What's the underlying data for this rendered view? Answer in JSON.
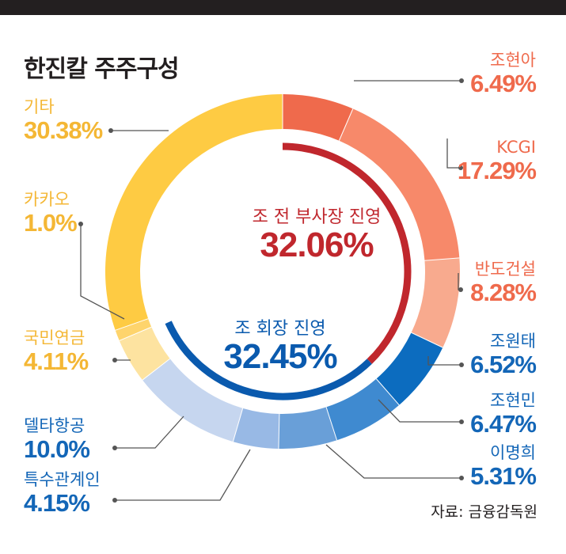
{
  "title": "한진칼 주주구성",
  "source": "자료: 금융감독원",
  "colors": {
    "orange_text": "#ef6a4c",
    "yellow_text": "#f4b735",
    "blue_text": "#1366b7",
    "red_group": "#c0272d",
    "blue_group": "#0a5aae",
    "leader": "#555555"
  },
  "chart_data": {
    "type": "pie",
    "style": "donut",
    "slices": [
      {
        "label": "조현아",
        "value": 6.49,
        "value_label": "6.49%",
        "color": "#ef6a4c"
      },
      {
        "label": "KCGI",
        "value": 17.29,
        "value_label": "17.29%",
        "color": "#f7896a"
      },
      {
        "label": "반도건설",
        "value": 8.28,
        "value_label": "8.28%",
        "color": "#f8aa8e"
      },
      {
        "label": "조원태",
        "value": 6.52,
        "value_label": "6.52%",
        "color": "#0c6cbf"
      },
      {
        "label": "조현민",
        "value": 6.47,
        "value_label": "6.47%",
        "color": "#3f8ad0"
      },
      {
        "label": "이명희",
        "value": 5.31,
        "value_label": "5.31%",
        "color": "#699fd8"
      },
      {
        "label": "특수관계인",
        "value": 4.15,
        "value_label": "4.15%",
        "color": "#98b9e5"
      },
      {
        "label": "델타항공",
        "value": 10.0,
        "value_label": "10.0%",
        "color": "#c6d6ef"
      },
      {
        "label": "국민연금",
        "value": 4.11,
        "value_label": "4.11%",
        "color": "#fde3a0"
      },
      {
        "label": "카카오",
        "value": 1.0,
        "value_label": "1.0%",
        "color": "#fed46c"
      },
      {
        "label": "기타",
        "value": 30.38,
        "value_label": "30.38%",
        "color": "#fecb43"
      }
    ],
    "groups": [
      {
        "label": "조 전 부사장 진영",
        "value": 32.06,
        "value_label": "32.06%",
        "color": "#c0272d"
      },
      {
        "label": "조 회장 진영",
        "value": 32.45,
        "value_label": "32.45%",
        "color": "#0a5aae"
      }
    ]
  }
}
